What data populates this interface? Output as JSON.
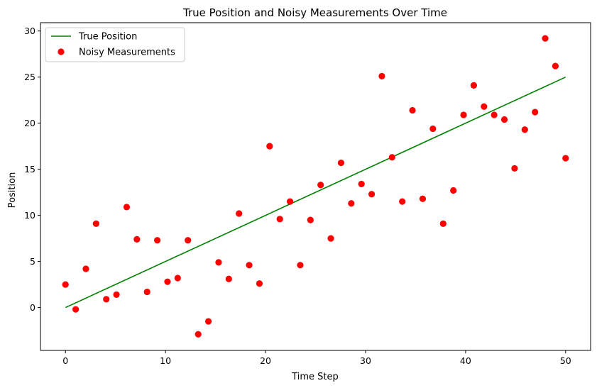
{
  "chart_data": {
    "type": "scatter",
    "title": "True Position and Noisy Measurements Over Time",
    "xlabel": "Time Step",
    "ylabel": "Position",
    "xlim": [
      -2.5,
      52.5
    ],
    "ylim": [
      -4.65,
      30.9
    ],
    "xticks": [
      0,
      10,
      20,
      30,
      40,
      50
    ],
    "yticks": [
      0,
      5,
      10,
      15,
      20,
      25,
      30
    ],
    "grid": false,
    "legend_position": "top-left",
    "series": [
      {
        "name": "True Position",
        "kind": "line",
        "color": "#008000",
        "points": [
          [
            0,
            0
          ],
          [
            50,
            25
          ]
        ]
      },
      {
        "name": "Noisy Measurements",
        "kind": "scatter",
        "color": "#ff0000",
        "x": [
          0,
          1.02,
          2.04,
          3.06,
          4.08,
          5.1,
          6.12,
          7.14,
          8.16,
          9.18,
          10.2,
          11.22,
          12.24,
          13.27,
          14.29,
          15.31,
          16.33,
          17.35,
          18.37,
          19.39,
          20.41,
          21.43,
          22.45,
          23.47,
          24.49,
          25.51,
          26.53,
          27.55,
          28.57,
          29.59,
          30.61,
          31.63,
          32.65,
          33.67,
          34.69,
          35.71,
          36.73,
          37.76,
          38.78,
          39.8,
          40.82,
          41.84,
          42.86,
          43.88,
          44.9,
          45.92,
          46.94,
          47.96,
          48.98,
          50
        ],
        "y": [
          2.5,
          -0.2,
          4.2,
          9.1,
          0.9,
          1.4,
          10.9,
          7.4,
          1.7,
          7.3,
          2.8,
          3.2,
          7.3,
          -2.9,
          -1.5,
          4.9,
          3.1,
          10.2,
          4.6,
          2.6,
          17.5,
          9.6,
          11.5,
          4.6,
          9.5,
          13.3,
          7.5,
          15.7,
          11.3,
          13.4,
          12.3,
          25.1,
          16.3,
          11.5,
          21.4,
          11.8,
          19.4,
          9.1,
          12.7,
          20.9,
          24.1,
          21.8,
          20.9,
          20.4,
          15.1,
          19.3,
          21.2,
          29.2,
          26.2,
          16.2
        ]
      }
    ]
  }
}
